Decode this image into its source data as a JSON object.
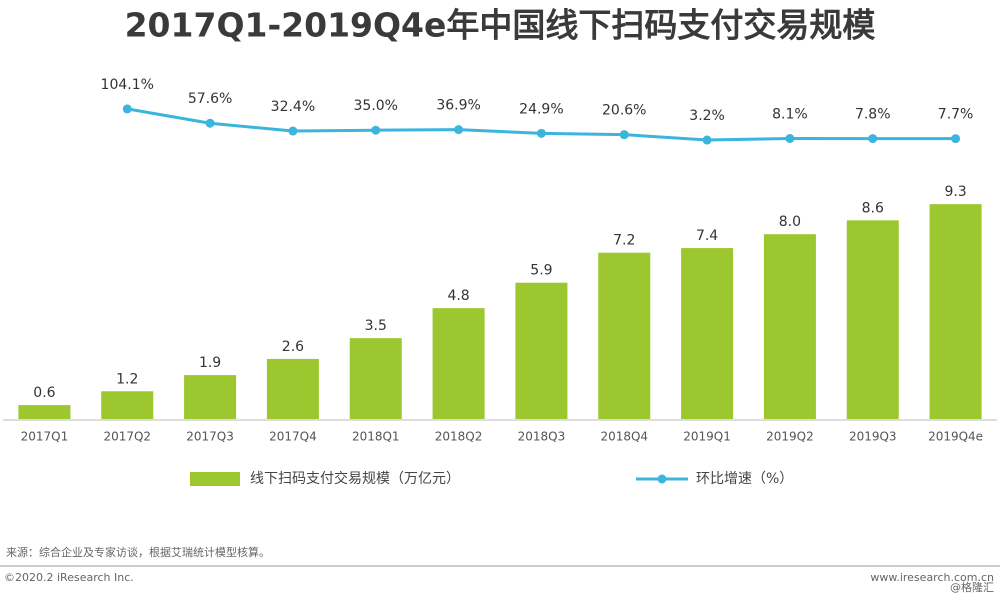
{
  "chart_data": {
    "type": "combo",
    "title": "2017Q1-2019Q4e年中国线下扫码支付交易规模",
    "categories": [
      "2017Q1",
      "2017Q2",
      "2017Q3",
      "2017Q4",
      "2018Q1",
      "2018Q2",
      "2018Q3",
      "2018Q4",
      "2019Q1",
      "2019Q2",
      "2019Q3",
      "2019Q4e"
    ],
    "series": [
      {
        "name": "线下扫码支付交易规模（万亿元）",
        "type": "bar",
        "color": "#9cc72e",
        "values": [
          0.6,
          1.2,
          1.9,
          2.6,
          3.5,
          4.8,
          5.9,
          7.2,
          7.4,
          8.0,
          8.6,
          9.3
        ],
        "value_labels": [
          "0.6",
          "1.2",
          "1.9",
          "2.6",
          "3.5",
          "4.8",
          "5.9",
          "7.2",
          "7.4",
          "8.0",
          "8.6",
          "9.3"
        ]
      },
      {
        "name": "环比增速（%）",
        "type": "line",
        "axis": "y2",
        "color": "#3bb5dd",
        "values": [
          null,
          104.1,
          57.6,
          32.4,
          35.0,
          36.9,
          24.9,
          20.6,
          3.2,
          8.1,
          7.8,
          7.7
        ],
        "value_labels": [
          null,
          "104.1%",
          "57.6%",
          "32.4%",
          "35.0%",
          "36.9%",
          "24.9%",
          "20.6%",
          "3.2%",
          "8.1%",
          "7.8%",
          "7.7%"
        ]
      }
    ],
    "ylim": [
      0,
      10
    ],
    "y2lim": [
      0,
      120
    ],
    "source": "来源：综合企业及专家访谈，根据艾瑞统计模型核算。",
    "copyright": "©2020.2 iResearch Inc.",
    "website": "www.iresearch.com.cn",
    "watermark": "@格隆汇"
  }
}
